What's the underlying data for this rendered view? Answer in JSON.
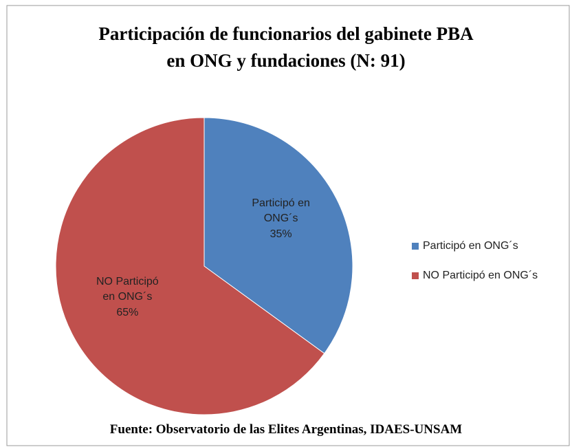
{
  "chart_data": {
    "type": "pie",
    "title": [
      "Participación de funcionarios del gabinete PBA",
      "en ONG y fundaciones (N: 91)"
    ],
    "categories": [
      "Participó en ONG´s",
      "NO Participó en ONG´s"
    ],
    "values": [
      35,
      65
    ],
    "value_labels": [
      "35%",
      "65%"
    ],
    "colors": [
      "#4f81bd",
      "#c0504d"
    ],
    "legend": "right",
    "source": "Fuente: Observatorio de las Elites Argentinas, IDAES-UNSAM"
  }
}
